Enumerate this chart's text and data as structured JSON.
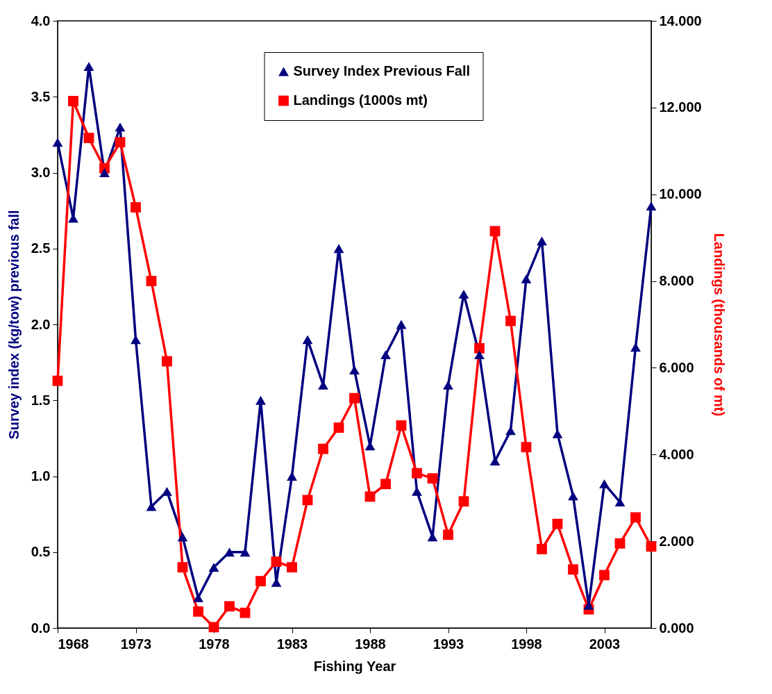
{
  "chart_data": {
    "type": "line",
    "xlabel": "Fishing Year",
    "ylabel": "Survey index (kg/tow) previous fall",
    "y2label": "Landings (thousands of mt)",
    "x": [
      1968,
      1969,
      1970,
      1971,
      1972,
      1973,
      1974,
      1975,
      1976,
      1977,
      1978,
      1979,
      1980,
      1981,
      1982,
      1983,
      1984,
      1985,
      1986,
      1987,
      1988,
      1989,
      1990,
      1991,
      1992,
      1993,
      1994,
      1995,
      1996,
      1997,
      1998,
      1999,
      2000,
      2001,
      2002,
      2003,
      2004,
      2005,
      2006
    ],
    "series": [
      {
        "name": "Survey Index Previous Fall",
        "color": "#000080",
        "marker": "triangle",
        "values": [
          3.2,
          2.7,
          3.7,
          3.0,
          3.3,
          1.9,
          0.8,
          0.9,
          0.6,
          0.2,
          0.4,
          0.5,
          0.5,
          1.5,
          0.3,
          1.0,
          1.9,
          1.6,
          2.5,
          1.7,
          1.2,
          1.8,
          2.0,
          0.9,
          0.6,
          1.6,
          2.2,
          1.8,
          1.1,
          1.3,
          2.3,
          2.55,
          1.28,
          0.87,
          0.15,
          0.95,
          0.83,
          1.85,
          2.78
        ]
      },
      {
        "name": "Landings (1000s mt)",
        "color": "#ff0000",
        "marker": "square",
        "axis": "y2",
        "values": [
          5.7,
          12.15,
          11.3,
          10.6,
          11.2,
          9.7,
          8.0,
          6.15,
          1.4,
          0.38,
          0.02,
          0.5,
          0.35,
          1.08,
          1.53,
          1.4,
          2.95,
          4.13,
          4.62,
          5.3,
          3.03,
          3.32,
          4.67,
          3.57,
          3.45,
          2.15,
          2.92,
          6.45,
          9.15,
          7.08,
          4.17,
          1.82,
          2.4,
          1.35,
          0.43,
          1.22,
          1.95,
          2.55,
          1.88
        ]
      }
    ],
    "xlim": [
      1968,
      2006
    ],
    "xticks": [
      1968,
      1973,
      1978,
      1983,
      1988,
      1993,
      1998,
      2003
    ],
    "ylim": [
      0,
      4
    ],
    "yticks": [
      {
        "value": 0,
        "label": "0.0"
      },
      {
        "value": 0.5,
        "label": "0.5"
      },
      {
        "value": 1,
        "label": "1.0"
      },
      {
        "value": 1.5,
        "label": "1.5"
      },
      {
        "value": 2,
        "label": "2.0"
      },
      {
        "value": 2.5,
        "label": "2.5"
      },
      {
        "value": 3,
        "label": "3.0"
      },
      {
        "value": 3.5,
        "label": "3.5"
      },
      {
        "value": 4,
        "label": "4.0"
      }
    ],
    "y2lim": [
      0,
      14
    ],
    "y2ticks": [
      {
        "value": 0,
        "label": "0.000"
      },
      {
        "value": 2,
        "label": "2.000"
      },
      {
        "value": 4,
        "label": "4.000"
      },
      {
        "value": 6,
        "label": "6.000"
      },
      {
        "value": 8,
        "label": "8.000"
      },
      {
        "value": 10,
        "label": "10.000"
      },
      {
        "value": 12,
        "label": "12.000"
      },
      {
        "value": 14,
        "label": "14.000"
      }
    ],
    "legend": "top",
    "grid": false
  }
}
